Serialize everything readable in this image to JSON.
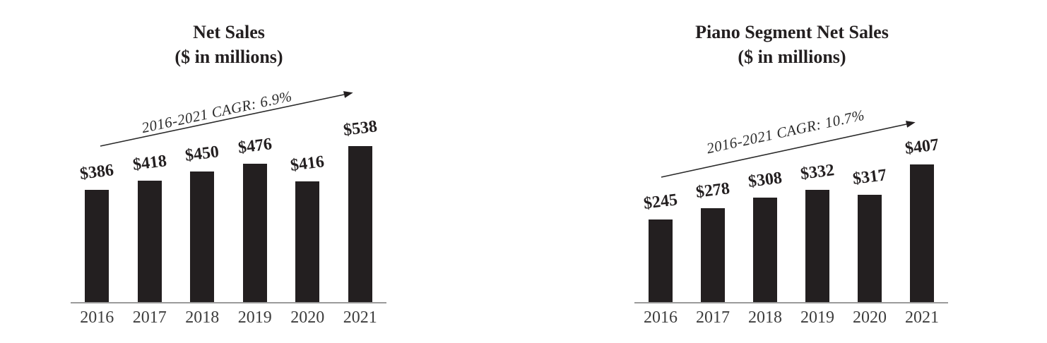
{
  "figure": {
    "background_color": "#ffffff",
    "bar_color": "#231f20",
    "axis_color": "#9b9b9b",
    "arrow_color": "#2a2a2a"
  },
  "chart_data": [
    {
      "type": "bar",
      "title": "Net Sales",
      "subtitle": "($ in millions)",
      "cagr_label": "2016-2021 CAGR: 6.9%",
      "categories": [
        "2016",
        "2017",
        "2018",
        "2019",
        "2020",
        "2021"
      ],
      "values": [
        386,
        418,
        450,
        476,
        416,
        538
      ],
      "value_labels": [
        "$386",
        "$418",
        "$450",
        "$476",
        "$416",
        "$538"
      ],
      "ylim": [
        0,
        560
      ],
      "grid": false,
      "legend": "none"
    },
    {
      "type": "bar",
      "title": "Piano Segment Net Sales",
      "subtitle": "($ in millions)",
      "cagr_label": "2016-2021 CAGR: 10.7%",
      "categories": [
        "2016",
        "2017",
        "2018",
        "2019",
        "2020",
        "2021"
      ],
      "values": [
        245,
        278,
        308,
        332,
        317,
        407
      ],
      "value_labels": [
        "$245",
        "$278",
        "$308",
        "$332",
        "$317",
        "$407"
      ],
      "ylim": [
        0,
        480
      ],
      "grid": false,
      "legend": "none"
    }
  ]
}
